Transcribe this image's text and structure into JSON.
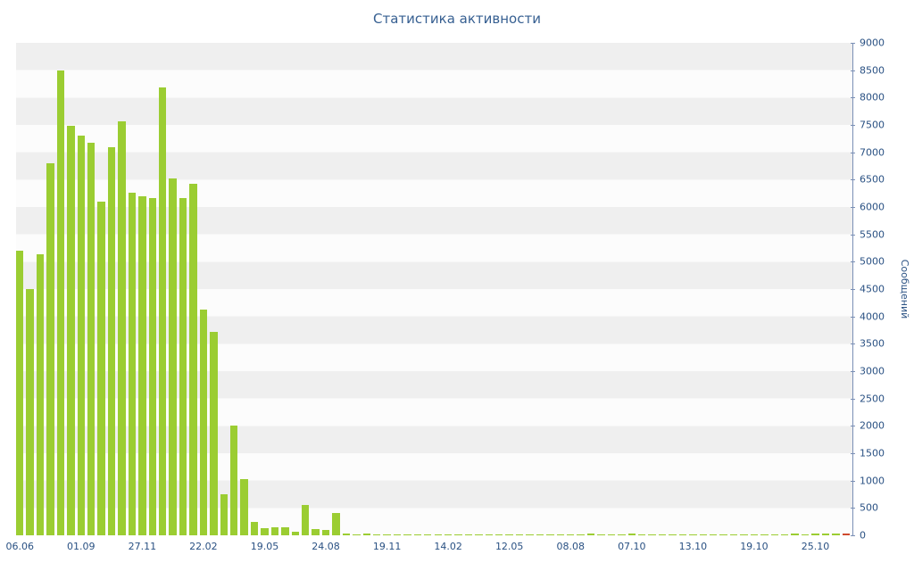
{
  "title": "Статистика активности",
  "colors": {
    "bar": "#9bcd32",
    "last_bar": "#cf4a2e",
    "axis_line": "#7a8fb5",
    "tick_text": "#2a5183",
    "title_text": "#365f91",
    "band_dark": "#efefef",
    "band_light": "#fcfcfc"
  },
  "chart_data": {
    "type": "bar",
    "title": "Статистика активности",
    "xlabel": "",
    "ylabel": "Сообщений",
    "ylim": [
      0,
      9000
    ],
    "ytick_step": 500,
    "grid": "horizontal-bands",
    "legend": "none",
    "bar_color": "#9bcd32",
    "last_bar_color": "#cf4a2e",
    "x_tick_labels": [
      {
        "label": "06.06",
        "index": 0
      },
      {
        "label": "01.09",
        "index": 6
      },
      {
        "label": "27.11",
        "index": 12
      },
      {
        "label": "22.02",
        "index": 18
      },
      {
        "label": "19.05",
        "index": 24
      },
      {
        "label": "24.08",
        "index": 30
      },
      {
        "label": "19.11",
        "index": 36
      },
      {
        "label": "14.02",
        "index": 42
      },
      {
        "label": "12.05",
        "index": 48
      },
      {
        "label": "08.08",
        "index": 54
      },
      {
        "label": "07.10",
        "index": 60
      },
      {
        "label": "13.10",
        "index": 66
      },
      {
        "label": "19.10",
        "index": 72
      },
      {
        "label": "25.10",
        "index": 78
      }
    ],
    "values": [
      5200,
      4500,
      5130,
      6800,
      8500,
      7480,
      7300,
      7170,
      6100,
      7100,
      7560,
      6260,
      6200,
      6160,
      8180,
      6520,
      6170,
      6430,
      4130,
      3710,
      750,
      2000,
      1020,
      250,
      130,
      150,
      140,
      60,
      560,
      120,
      100,
      400,
      30,
      15,
      25,
      10,
      20,
      10,
      15,
      10,
      20,
      10,
      15,
      10,
      10,
      15,
      10,
      20,
      10,
      15,
      10,
      10,
      20,
      10,
      15,
      10,
      25,
      10,
      15,
      20,
      30,
      15,
      10,
      20,
      10,
      15,
      10,
      10,
      15,
      10,
      20,
      10,
      15,
      10,
      20,
      15,
      25,
      20,
      30,
      25,
      35,
      40
    ]
  }
}
